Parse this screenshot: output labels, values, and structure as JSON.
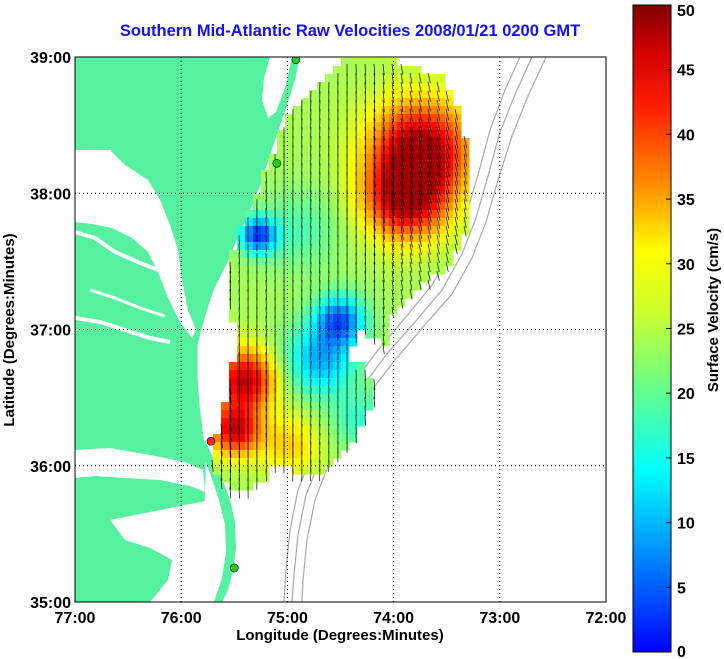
{
  "title": "Southern Mid-Atlantic Raw Velocities 2008/01/21 0200 GMT",
  "map": {
    "xlabel": "Longitude (Degrees:Minutes)",
    "ylabel": "Latitude (Degrees:Minutes)",
    "lon_range": [
      -77,
      -72
    ],
    "lat_range": [
      35,
      39
    ],
    "xticks": [
      {
        "value": -77,
        "label": "77:00"
      },
      {
        "value": -76,
        "label": "76:00"
      },
      {
        "value": -75,
        "label": "75:00"
      },
      {
        "value": -74,
        "label": "74:00"
      },
      {
        "value": -73,
        "label": "73:00"
      },
      {
        "value": -72,
        "label": "72:00"
      }
    ],
    "yticks": [
      {
        "value": 35,
        "label": "35:00"
      },
      {
        "value": 36,
        "label": "36:00"
      },
      {
        "value": 37,
        "label": "37:00"
      },
      {
        "value": 38,
        "label": "38:00"
      },
      {
        "value": 39,
        "label": "39:00"
      }
    ],
    "grid": "dotted",
    "land_color": "#55f0a0",
    "bathymetry_color": "#a8a8a8",
    "stations": [
      {
        "lon": -74.92,
        "lat": 38.98,
        "color": "#22cc22"
      },
      {
        "lon": -75.1,
        "lat": 38.22,
        "color": "#22cc22"
      },
      {
        "lon": -75.72,
        "lat": 36.18,
        "color": "#ff2020"
      },
      {
        "lon": -75.5,
        "lat": 35.25,
        "color": "#22cc22"
      }
    ]
  },
  "colorbar": {
    "label": "Surface Velocity (cm/s)",
    "min": 0,
    "max": 50,
    "ticks": [
      "0",
      "5",
      "10",
      "15",
      "20",
      "25",
      "30",
      "35",
      "40",
      "45",
      "50"
    ],
    "colormap": "jet"
  }
}
